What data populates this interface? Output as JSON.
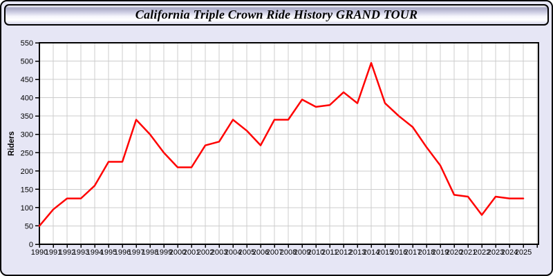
{
  "window": {
    "title": "California Triple Crown Ride History GRAND TOUR"
  },
  "chart_data": {
    "type": "line",
    "title": "California Triple Crown Ride History GRAND TOUR",
    "ylabel": "Riders",
    "xlabel": "",
    "ylim": [
      0,
      550
    ],
    "ytick_step": 50,
    "grid": true,
    "legend_position": "none",
    "x": [
      1990,
      1991,
      1992,
      1993,
      1994,
      1995,
      1996,
      1997,
      1998,
      1999,
      2000,
      2001,
      2002,
      2003,
      2004,
      2005,
      2006,
      2007,
      2008,
      2009,
      2010,
      2011,
      2012,
      2013,
      2014,
      2015,
      2016,
      2017,
      2018,
      2019,
      2020,
      2021,
      2022,
      2023,
      2024,
      2025
    ],
    "series": [
      {
        "name": "Riders",
        "color": "#ff0000",
        "values": [
          50,
          95,
          125,
          125,
          160,
          225,
          225,
          340,
          300,
          250,
          210,
          210,
          270,
          280,
          340,
          310,
          270,
          340,
          340,
          395,
          375,
          380,
          415,
          385,
          495,
          385,
          350,
          320,
          265,
          215,
          135,
          130,
          80,
          130,
          125,
          125
        ]
      }
    ]
  },
  "colors": {
    "window_background": "#e6e6f5",
    "plot_background": "#ffffff",
    "gridline": "#cccccc",
    "axis": "#000000",
    "line": "#ff0000"
  }
}
